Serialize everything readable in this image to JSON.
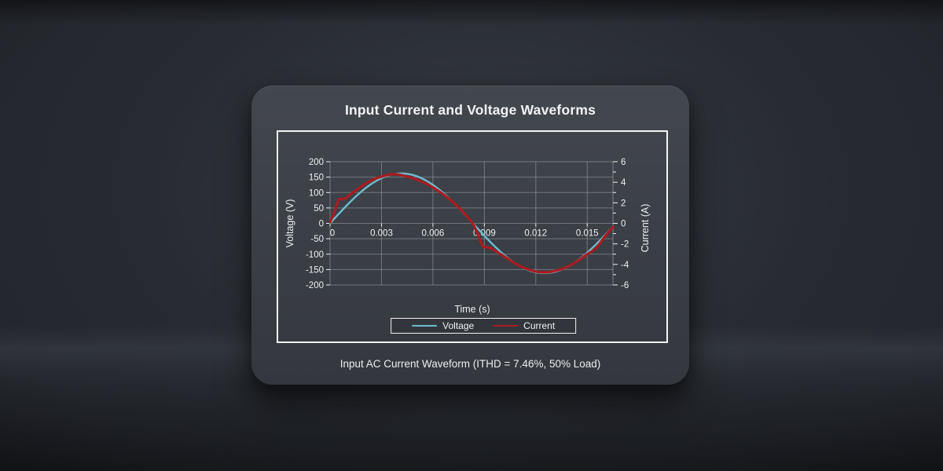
{
  "card": {
    "caption": "Input AC Current Waveform (ITHD = 7.46%, 50% Load)"
  },
  "colors": {
    "panel": "#3a3e45",
    "frame_border": "#f4f4f4",
    "grid": "#aab0b5",
    "text": "#eef0f2",
    "voltage_line": "#6fbcce",
    "current_line": "#aa1c21"
  },
  "chart_data": {
    "type": "line",
    "title": "Input Current and Voltage Waveforms",
    "xlabel": "Time (s)",
    "ylabel_left": "Voltage (V)",
    "ylabel_right": "Current (A)",
    "xlim": [
      0,
      0.0165
    ],
    "x_ticks": [
      0,
      0.003,
      0.006,
      0.009,
      0.012,
      0.015
    ],
    "x_tick_labels": [
      "0",
      "0.003",
      "0.006",
      "0.009",
      "0.012",
      "0.015"
    ],
    "ylim_left": [
      -200,
      200
    ],
    "y_ticks_left": [
      200,
      150,
      100,
      50,
      0,
      -50,
      -100,
      -150,
      -200
    ],
    "ylim_right": [
      -6,
      6
    ],
    "y_ticks_right": [
      6,
      4,
      2,
      0,
      -2,
      -4,
      -6
    ],
    "y_minor_ticks_right": [
      5,
      3,
      1,
      -1,
      -3,
      -5
    ],
    "grid": true,
    "legend_position": "bottom",
    "series": [
      {
        "name": "Voltage",
        "axis": "left",
        "color": "#6fbcce",
        "points": [
          [
            0,
            0
          ],
          [
            0.0005,
            30.4
          ],
          [
            0.001,
            59.6
          ],
          [
            0.0015,
            86.8
          ],
          [
            0.002,
            110.9
          ],
          [
            0.0025,
            131.1
          ],
          [
            0.003,
            146.6
          ],
          [
            0.0035,
            156.9
          ],
          [
            0.004,
            161.7
          ],
          [
            0.0045,
            160.7
          ],
          [
            0.005,
            154.1
          ],
          [
            0.0055,
            142.0
          ],
          [
            0.006,
            124.8
          ],
          [
            0.0065,
            103.3
          ],
          [
            0.007,
            78.0
          ],
          [
            0.0075,
            50.1
          ],
          [
            0.008,
            20.3
          ],
          [
            0.0085,
            -10.2
          ],
          [
            0.009,
            -40.3
          ],
          [
            0.0095,
            -69.0
          ],
          [
            0.01,
            -95.2
          ],
          [
            0.0105,
            -118.1
          ],
          [
            0.011,
            -136.8
          ],
          [
            0.0115,
            -150.6
          ],
          [
            0.012,
            -159.1
          ],
          [
            0.0125,
            -162.0
          ],
          [
            0.013,
            -159.1
          ],
          [
            0.0135,
            -150.6
          ],
          [
            0.014,
            -136.8
          ],
          [
            0.0145,
            -118.1
          ],
          [
            0.015,
            -95.2
          ],
          [
            0.0155,
            -69.0
          ],
          [
            0.016,
            -40.3
          ],
          [
            0.0165,
            -10.2
          ]
        ]
      },
      {
        "name": "Current",
        "axis": "right",
        "color": "#aa1c21",
        "points": [
          [
            0,
            0.1
          ],
          [
            0.00025,
            1.1
          ],
          [
            0.0005,
            2.3
          ],
          [
            0.0007,
            2.35
          ],
          [
            0.0009,
            2.45
          ],
          [
            0.00125,
            2.9
          ],
          [
            0.0015,
            3.2
          ],
          [
            0.002,
            3.78
          ],
          [
            0.0025,
            4.25
          ],
          [
            0.003,
            4.55
          ],
          [
            0.0035,
            4.74
          ],
          [
            0.00375,
            4.78
          ],
          [
            0.004,
            4.75
          ],
          [
            0.0045,
            4.55
          ],
          [
            0.005,
            4.3
          ],
          [
            0.0055,
            3.95
          ],
          [
            0.006,
            3.5
          ],
          [
            0.0065,
            2.95
          ],
          [
            0.007,
            2.3
          ],
          [
            0.0075,
            1.55
          ],
          [
            0.008,
            0.65
          ],
          [
            0.00835,
            -0.1
          ],
          [
            0.0086,
            -1.0
          ],
          [
            0.0089,
            -2.2
          ],
          [
            0.0091,
            -2.3
          ],
          [
            0.0094,
            -2.45
          ],
          [
            0.00975,
            -2.8
          ],
          [
            0.01,
            -3.05
          ],
          [
            0.0105,
            -3.6
          ],
          [
            0.011,
            -4.1
          ],
          [
            0.0115,
            -4.45
          ],
          [
            0.012,
            -4.7
          ],
          [
            0.0124,
            -4.78
          ],
          [
            0.0128,
            -4.75
          ],
          [
            0.0132,
            -4.6
          ],
          [
            0.0136,
            -4.4
          ],
          [
            0.014,
            -4.1
          ],
          [
            0.0145,
            -3.6
          ],
          [
            0.015,
            -3.0
          ],
          [
            0.0153,
            -2.7
          ],
          [
            0.0156,
            -2.25
          ],
          [
            0.016,
            -1.35
          ],
          [
            0.0165,
            -0.35
          ]
        ]
      }
    ]
  }
}
